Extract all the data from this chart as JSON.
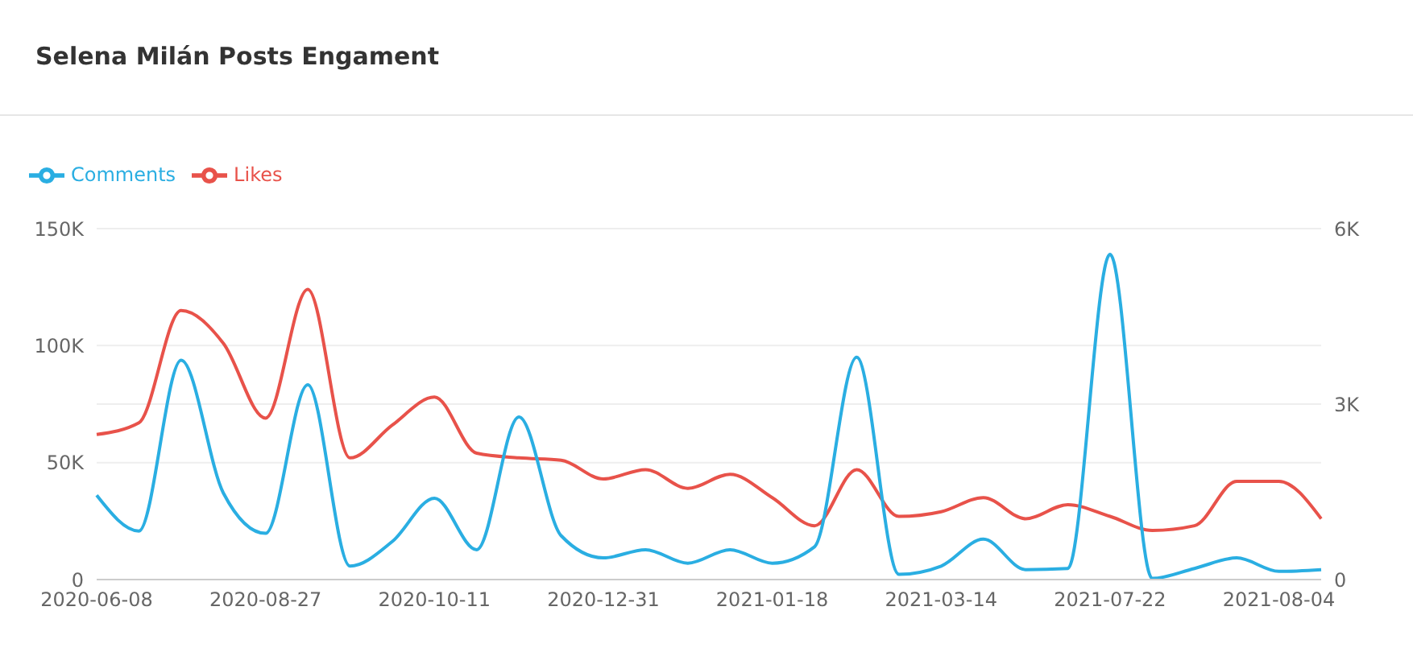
{
  "chart_data": {
    "type": "line",
    "title": "Selena Milán Posts Engament",
    "categories": [
      "2020-06-08",
      null,
      null,
      null,
      "2020-08-27",
      null,
      null,
      null,
      "2020-10-11",
      null,
      null,
      null,
      "2020-12-31",
      null,
      null,
      null,
      "2021-01-18",
      null,
      null,
      null,
      "2021-03-14",
      null,
      null,
      null,
      "2021-07-22",
      null,
      null,
      null,
      "2021-08-04",
      null
    ],
    "series": [
      {
        "name": "Likes",
        "color": "#e8524a",
        "values": [
          62000,
          67000,
          115000,
          101000,
          69000,
          124000,
          52000,
          66000,
          78000,
          54000,
          52000,
          51000,
          43000,
          47000,
          39000,
          45000,
          35000,
          23000,
          47000,
          27000,
          29000,
          35000,
          26000,
          32000,
          27000,
          21000,
          23000,
          42000,
          42000,
          26000
        ]
      },
      {
        "name": "Comments",
        "color": "#2aaee2",
        "axis": "y2",
        "values": [
          1440,
          830,
          3750,
          1480,
          790,
          3330,
          230,
          650,
          1390,
          510,
          2780,
          750,
          370,
          510,
          280,
          510,
          280,
          560,
          3800,
          90,
          230,
          690,
          170,
          190,
          5560,
          20,
          190,
          370,
          140,
          170
        ]
      }
    ],
    "ylim": [
      0,
      150000
    ],
    "yticks": [
      0,
      {
        "value": 50000,
        "label": "50K"
      },
      {
        "value": 100000,
        "label": "100K"
      },
      {
        "value": 150000,
        "label": "150K"
      }
    ],
    "y2lim": [
      0,
      6000
    ],
    "y2ticks": [
      0,
      {
        "value": 3000,
        "label": "3K"
      },
      {
        "value": 6000,
        "label": "6K"
      }
    ],
    "grid": "y",
    "legend": "top left"
  }
}
